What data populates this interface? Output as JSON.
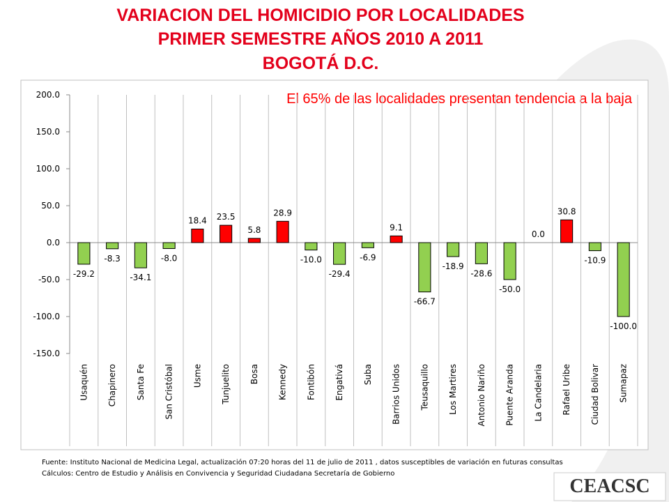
{
  "chart_data": {
    "type": "bar",
    "title": [
      "VARIACION DEL HOMICIDIO POR LOCALIDADES",
      "PRIMER SEMESTRE AÑOS 2010 A 2011",
      "BOGOTÁ D.C."
    ],
    "annotation": "El  65% de las localidades presentan tendencia a la baja",
    "categories": [
      "Usaquén",
      "Chapinero",
      "Santa Fe",
      "San Cristóbal",
      "Usme",
      "Tunjuelito",
      "Bosa",
      "Kennedy",
      "Fontibón",
      "Engativá",
      "Suba",
      "Barrios Unidos",
      "Teusaquillo",
      "Los Martires",
      "Antonio Nariño",
      "Puente Aranda",
      "La Candelaria",
      "Rafael Uribe",
      "Ciudad Bolivar",
      "Sumapaz"
    ],
    "values": [
      -29.2,
      -8.3,
      -34.1,
      -8.0,
      18.4,
      23.5,
      5.8,
      28.9,
      -10.0,
      -29.4,
      -6.9,
      9.1,
      -66.7,
      -18.9,
      -28.6,
      -50.0,
      0.0,
      30.8,
      -10.9,
      -100.0
    ],
    "value_labels": [
      "-29.2",
      "-8.3",
      "-34.1",
      "-8.0",
      "18.4",
      "23.5",
      "5.8",
      "28.9",
      "-10.0",
      "-29.4",
      "-6.9",
      "9.1",
      "-66.7",
      "-18.9",
      "-28.6",
      "-50.0",
      "0.0",
      "30.8",
      "-10.9",
      "-100.0"
    ],
    "positive_color": "#ff0000",
    "negative_color": "#92d050",
    "ylim": [
      -150,
      200
    ],
    "yticks": [
      {
        "value": -150,
        "label": "-150.0"
      },
      {
        "value": -100,
        "label": "-100.0"
      },
      {
        "value": -50,
        "label": "-50.0"
      },
      {
        "value": 0,
        "label": "0.0"
      },
      {
        "value": 50,
        "label": "50.0"
      },
      {
        "value": 100,
        "label": "100.0"
      },
      {
        "value": 150,
        "label": "150.0"
      },
      {
        "value": 200,
        "label": "200.0"
      }
    ],
    "notes": [
      "Fuente: Instituto Nacional de Medicina Legal, actualización  07:20 horas del 11 de  julio de 2011 , datos susceptibles de variación en futuras consultas",
      "Cálculos: Centro de Estudio y Análisis en Convivencia y Seguridad Ciudadana Secretaría de Gobierno"
    ],
    "logo": "CEACSC"
  }
}
